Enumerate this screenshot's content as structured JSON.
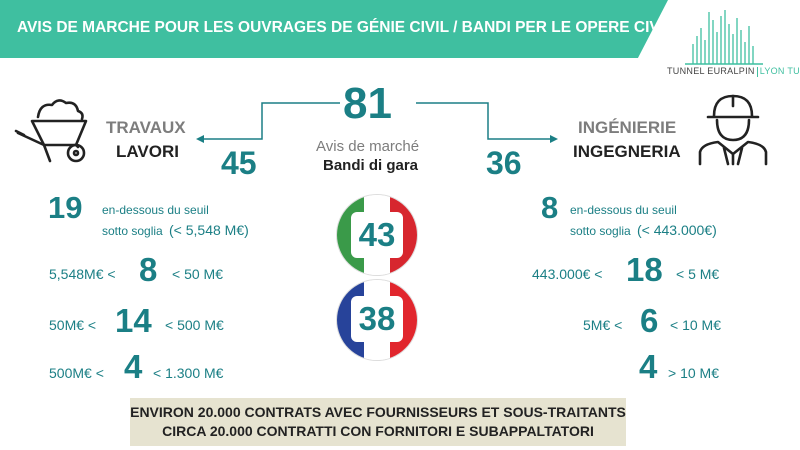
{
  "header": {
    "title": "AVIS DE MARCHE POUR LES OUVRAGES DE GÉNIE CIVIL / BANDI PER LE OPERE CIVILI"
  },
  "logo": {
    "left": "TUNNEL EURALPIN",
    "right": "LYON TURIN"
  },
  "center": {
    "total": "81",
    "label_fr": "Avis de marché",
    "label_it": "Bandi di gara",
    "italy_count": "43",
    "france_count": "38"
  },
  "left": {
    "title_fr": "TRAVAUX",
    "title_it": "LAVORI",
    "total": "45",
    "rows": [
      {
        "value": "19",
        "line1": "en-dessous du seuil",
        "line2a": "sotto soglia",
        "line2b": "(< 5,548 M€)"
      },
      {
        "prefix": "5,548M€ <",
        "value": "8",
        "suffix": "< 50 M€"
      },
      {
        "prefix": "50M€ <",
        "value": "14",
        "suffix": "< 500 M€"
      },
      {
        "prefix": "500M€ <",
        "value": "4",
        "suffix": "< 1.300 M€"
      }
    ]
  },
  "right": {
    "title_fr": "INGÉNIERIE",
    "title_it": "INGEGNERIA",
    "total": "36",
    "rows": [
      {
        "value": "8",
        "line1": "en-dessous du seuil",
        "line2a": "sotto soglia",
        "line2b": "(< 443.000€)"
      },
      {
        "prefix": "443.000€ <",
        "value": "18",
        "suffix": "< 5 M€"
      },
      {
        "prefix": "5M€ <",
        "value": "6",
        "suffix": "< 10 M€"
      },
      {
        "value": "4",
        "suffix": "> 10 M€"
      }
    ]
  },
  "footer": {
    "line1": "ENVIRON 20.000 CONTRATS AVEC FOURNISSEURS ET SOUS-TRAITANTS",
    "line2": "CIRCA 20.000 CONTRATTI CON FORNITORI E SUBAPPALTATORI"
  },
  "colors": {
    "accent": "#3fbfa0",
    "number": "#1b7f85",
    "footer_bg": "#e6e3d0"
  },
  "icons": [
    "wheelbarrow-icon",
    "engineer-hardhat-icon",
    "city-skyline-logo"
  ]
}
